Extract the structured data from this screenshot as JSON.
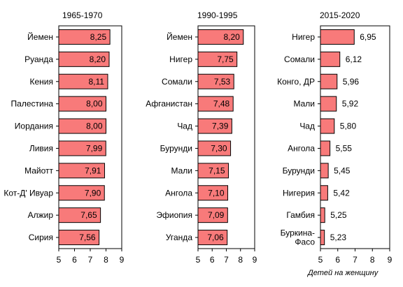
{
  "footnote": "Детей на женщину",
  "colors": {
    "bar_fill": "#f87a7a",
    "bar_stroke": "#000000",
    "axis": "#000000"
  },
  "chart_data": [
    {
      "type": "bar",
      "orientation": "horizontal",
      "title": "1965-1970",
      "xlim": [
        5,
        9
      ],
      "xticks": [
        5,
        6,
        7,
        8,
        9
      ],
      "grid": false,
      "categories": [
        "Йемен",
        "Руанда",
        "Кения",
        "Палестина",
        "Иордания",
        "Ливия",
        "Майотт",
        "Кот-Д' Ивуар",
        "Алжир",
        "Сирия"
      ],
      "values": [
        8.25,
        8.2,
        8.11,
        8.0,
        8.0,
        7.99,
        7.91,
        7.9,
        7.65,
        7.56
      ],
      "value_labels": [
        "8,25",
        "8,20",
        "8,11",
        "8,00",
        "8,00",
        "7,99",
        "7,91",
        "7,90",
        "7,65",
        "7,56"
      ]
    },
    {
      "type": "bar",
      "orientation": "horizontal",
      "title": "1990-1995",
      "xlim": [
        5,
        9
      ],
      "xticks": [
        5,
        6,
        7,
        8,
        9
      ],
      "grid": false,
      "categories": [
        "Йемен",
        "Нигер",
        "Сомали",
        "Афганистан",
        "Чад",
        "Бурунди",
        "Мали",
        "Ангола",
        "Эфиопия",
        "Уганда"
      ],
      "values": [
        8.2,
        7.75,
        7.53,
        7.48,
        7.39,
        7.3,
        7.15,
        7.1,
        7.09,
        7.06
      ],
      "value_labels": [
        "8,20",
        "7,75",
        "7,53",
        "7,48",
        "7,39",
        "7,30",
        "7,15",
        "7,10",
        "7,09",
        "7,06"
      ]
    },
    {
      "type": "bar",
      "orientation": "horizontal",
      "title": "2015-2020",
      "xlim": [
        5,
        9
      ],
      "xticks": [
        5,
        6,
        7,
        8,
        9
      ],
      "grid": false,
      "categories": [
        "Нигер",
        "Сомали",
        "Конго, ДР",
        "Мали",
        "Чад",
        "Ангола",
        "Бурунди",
        "Нигерия",
        "Гамбия",
        "Буркина-\nФасо"
      ],
      "values": [
        6.95,
        6.12,
        5.96,
        5.92,
        5.8,
        5.55,
        5.45,
        5.42,
        5.25,
        5.23
      ],
      "value_labels": [
        "6,95",
        "6,12",
        "5,96",
        "5,92",
        "5,80",
        "5,55",
        "5,45",
        "5,42",
        "5,25",
        "5,23"
      ]
    }
  ]
}
